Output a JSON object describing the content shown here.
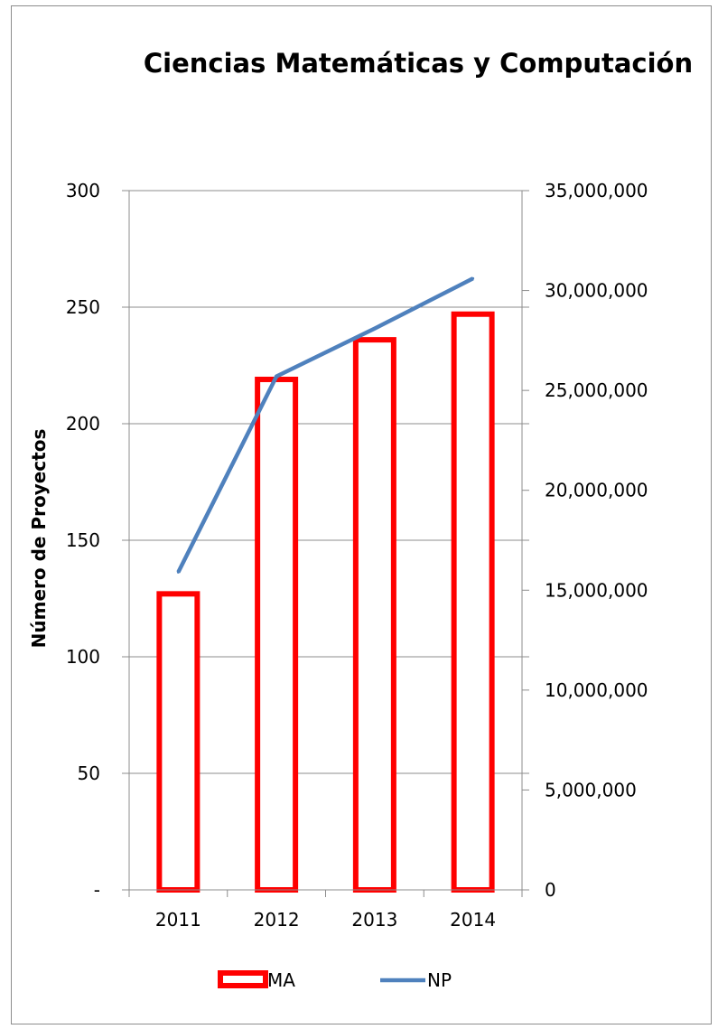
{
  "chart_data": {
    "type": "bar",
    "title": "Ciencias Matemáticas y Computación",
    "xlabel": "",
    "ylabel": "Número de Proyectos",
    "categories": [
      "2011",
      "2012",
      "2013",
      "2014"
    ],
    "left_axis": {
      "range": [
        0,
        300
      ],
      "ticks": [
        0,
        50,
        100,
        150,
        200,
        250,
        300
      ],
      "tick_labels": [
        "-",
        "50",
        "100",
        "150",
        "200",
        "250",
        "300"
      ]
    },
    "right_axis": {
      "range": [
        0,
        35000000
      ],
      "ticks": [
        0,
        5000000,
        10000000,
        15000000,
        20000000,
        25000000,
        30000000,
        35000000
      ],
      "tick_labels": [
        "0",
        "5,000,000",
        "10,000,000",
        "15,000,000",
        "20,000,000",
        "25,000,000",
        "30,000,000",
        "35,000,000"
      ]
    },
    "series": [
      {
        "name": "MA",
        "type": "bar",
        "axis": "left",
        "values": [
          127,
          219,
          236,
          247
        ],
        "color": "#ff0000"
      },
      {
        "name": "NP",
        "type": "line",
        "axis": "right",
        "values": [
          15900000,
          25700000,
          28100000,
          30600000
        ],
        "color": "#4f81bd"
      }
    ],
    "grid": true,
    "legend": "bottom"
  }
}
